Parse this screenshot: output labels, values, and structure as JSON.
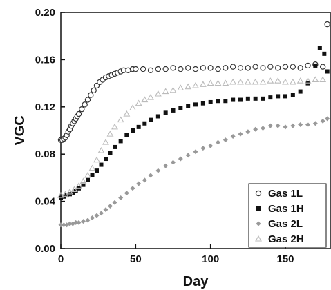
{
  "chart_data": {
    "type": "scatter",
    "xlabel": "Day",
    "ylabel": "VGC",
    "xlim": [
      0,
      180
    ],
    "ylim": [
      0.0,
      0.2
    ],
    "xticks": [
      0,
      50,
      100,
      150
    ],
    "yticks": [
      "0.00",
      "0.04",
      "0.08",
      "0.12",
      "0.16",
      "0.20"
    ],
    "grid": false,
    "legend_position": "bottom-right",
    "series": [
      {
        "name": "Gas 1L",
        "marker": "open-circle",
        "color": "#333333",
        "x": [
          0,
          1,
          2,
          3,
          4,
          5,
          6,
          7,
          8,
          9,
          10,
          11,
          12,
          14,
          16,
          18,
          20,
          22,
          24,
          26,
          28,
          30,
          32,
          34,
          36,
          38,
          40,
          42,
          45,
          48,
          50,
          55,
          60,
          65,
          70,
          75,
          80,
          85,
          90,
          95,
          100,
          105,
          110,
          115,
          120,
          125,
          130,
          135,
          140,
          145,
          150,
          155,
          160,
          165,
          170,
          175,
          178
        ],
        "y": [
          0.092,
          0.092,
          0.093,
          0.094,
          0.096,
          0.099,
          0.101,
          0.104,
          0.106,
          0.108,
          0.11,
          0.112,
          0.114,
          0.118,
          0.122,
          0.126,
          0.13,
          0.134,
          0.138,
          0.141,
          0.143,
          0.145,
          0.146,
          0.147,
          0.148,
          0.149,
          0.15,
          0.151,
          0.151,
          0.152,
          0.152,
          0.152,
          0.151,
          0.152,
          0.152,
          0.153,
          0.152,
          0.153,
          0.152,
          0.153,
          0.153,
          0.152,
          0.153,
          0.154,
          0.153,
          0.153,
          0.154,
          0.153,
          0.154,
          0.153,
          0.154,
          0.154,
          0.153,
          0.155,
          0.156,
          0.154,
          0.19
        ]
      },
      {
        "name": "Gas 1H",
        "marker": "filled-square",
        "color": "#111111",
        "x": [
          0,
          2,
          4,
          6,
          8,
          10,
          12,
          15,
          18,
          21,
          24,
          27,
          30,
          33,
          36,
          40,
          44,
          48,
          52,
          56,
          60,
          65,
          70,
          75,
          80,
          85,
          90,
          95,
          100,
          105,
          110,
          115,
          120,
          125,
          130,
          135,
          140,
          145,
          150,
          155,
          160,
          165,
          170,
          173,
          176,
          178
        ],
        "y": [
          0.043,
          0.044,
          0.045,
          0.046,
          0.047,
          0.049,
          0.051,
          0.054,
          0.058,
          0.062,
          0.066,
          0.071,
          0.076,
          0.081,
          0.086,
          0.091,
          0.096,
          0.1,
          0.103,
          0.106,
          0.109,
          0.112,
          0.115,
          0.117,
          0.119,
          0.121,
          0.122,
          0.123,
          0.124,
          0.125,
          0.125,
          0.126,
          0.126,
          0.127,
          0.127,
          0.127,
          0.128,
          0.129,
          0.129,
          0.13,
          0.133,
          0.14,
          0.155,
          0.17,
          0.165,
          0.15
        ]
      },
      {
        "name": "Gas 2L",
        "marker": "filled-diamond",
        "color": "#999999",
        "x": [
          0,
          2,
          4,
          6,
          8,
          10,
          12,
          15,
          18,
          21,
          24,
          27,
          30,
          33,
          36,
          40,
          44,
          48,
          52,
          56,
          60,
          65,
          70,
          75,
          80,
          85,
          90,
          95,
          100,
          105,
          110,
          115,
          120,
          125,
          130,
          135,
          140,
          145,
          150,
          155,
          160,
          165,
          170,
          175,
          178
        ],
        "y": [
          0.02,
          0.02,
          0.02,
          0.021,
          0.021,
          0.022,
          0.022,
          0.023,
          0.024,
          0.026,
          0.028,
          0.03,
          0.033,
          0.036,
          0.039,
          0.043,
          0.047,
          0.051,
          0.055,
          0.058,
          0.062,
          0.066,
          0.07,
          0.073,
          0.076,
          0.079,
          0.082,
          0.085,
          0.087,
          0.09,
          0.092,
          0.095,
          0.097,
          0.099,
          0.101,
          0.102,
          0.104,
          0.104,
          0.103,
          0.104,
          0.105,
          0.105,
          0.106,
          0.108,
          0.11
        ]
      },
      {
        "name": "Gas 2H",
        "marker": "open-triangle",
        "color": "#bbbbbb",
        "x": [
          0,
          3,
          6,
          9,
          12,
          15,
          18,
          21,
          24,
          27,
          30,
          33,
          36,
          40,
          44,
          48,
          52,
          56,
          60,
          65,
          70,
          75,
          80,
          85,
          90,
          95,
          100,
          105,
          110,
          115,
          120,
          125,
          130,
          135,
          140,
          145,
          150,
          155,
          160,
          165,
          170,
          175
        ],
        "y": [
          0.045,
          0.046,
          0.048,
          0.05,
          0.053,
          0.057,
          0.062,
          0.068,
          0.075,
          0.083,
          0.09,
          0.097,
          0.103,
          0.109,
          0.114,
          0.119,
          0.123,
          0.126,
          0.128,
          0.131,
          0.133,
          0.134,
          0.136,
          0.137,
          0.138,
          0.139,
          0.14,
          0.14,
          0.14,
          0.141,
          0.141,
          0.141,
          0.141,
          0.141,
          0.142,
          0.142,
          0.141,
          0.141,
          0.142,
          0.142,
          0.143,
          0.143
        ]
      }
    ]
  }
}
